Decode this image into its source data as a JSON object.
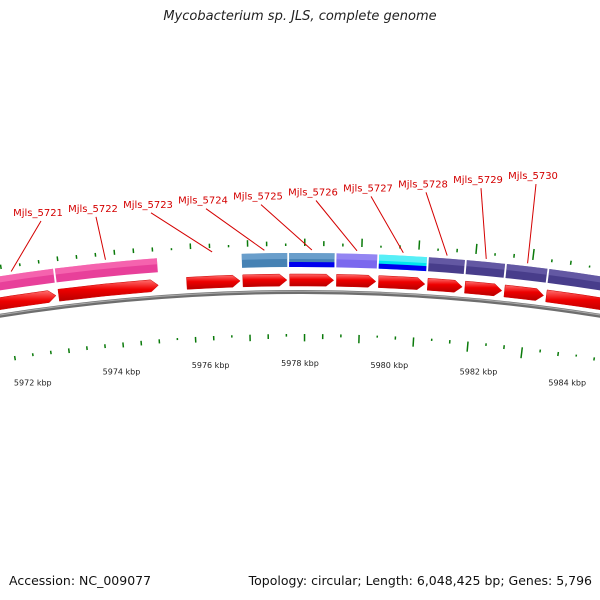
{
  "title": "Mycobacterium sp. JLS, complete genome",
  "footer": {
    "accession": "Accession: NC_009077",
    "summary": "Topology: circular; Length: 6,048,425 bp; Genes: 5,796"
  },
  "colors": {
    "backbone": "#808080",
    "cds_forward": "#ee0000",
    "label": "#d40000",
    "tick": "#006400"
  },
  "genes": [
    {
      "label": "Mjls_5721",
      "start": 5971.0,
      "end": 5972.8,
      "cog_color": "#e8409a",
      "cog_shade": "#ff80c0",
      "cog_bottom": null
    },
    {
      "label": "Mjls_5722",
      "start": 5972.8,
      "end": 5975.0,
      "cog_color": "#e8409a",
      "cog_shade": "#ff80c0",
      "cog_bottom": null
    },
    {
      "label": "Mjls_5723",
      "start": 5975.55,
      "end": 5976.75,
      "cog_color": null,
      "cog_shade": null,
      "cog_bottom": null
    },
    {
      "label": "Mjls_5724",
      "start": 5976.75,
      "end": 5977.75,
      "cog_color": "#4682b4",
      "cog_shade": "#87b7df",
      "cog_bottom": null
    },
    {
      "label": "Mjls_5725",
      "start": 5977.75,
      "end": 5978.75,
      "cog_color": "#4682b4",
      "cog_shade": "#87b7df",
      "cog_bottom": "#0000ee"
    },
    {
      "label": "Mjls_5726",
      "start": 5978.75,
      "end": 5979.65,
      "cog_color": "#7b68ee",
      "cog_shade": "#a89cf5",
      "cog_bottom": null
    },
    {
      "label": "Mjls_5727",
      "start": 5979.65,
      "end": 5980.7,
      "cog_color": "#00e5ee",
      "cog_shade": "#9ff8ff",
      "cog_bottom": "#0000ee"
    },
    {
      "label": "Mjls_5728",
      "start": 5980.7,
      "end": 5981.5,
      "cog_color": "#483d8b",
      "cog_shade": "#7a70b8",
      "cog_bottom": null
    },
    {
      "label": "Mjls_5729",
      "start": 5981.5,
      "end": 5982.35,
      "cog_color": "#483d8b",
      "cog_shade": "#7a70b8",
      "cog_bottom": null
    },
    {
      "label": "Mjls_5730",
      "start": 5982.35,
      "end": 5983.25,
      "cog_color": "#483d8b",
      "cog_shade": "#7a70b8",
      "cog_bottom": null
    },
    {
      "label": "",
      "start": 5983.25,
      "end": 5985.0,
      "cog_color": "#483d8b",
      "cog_shade": "#7a70b8",
      "cog_bottom": null
    }
  ],
  "scale_labels": [
    {
      "kbp": 5972,
      "text": "5972 kbp"
    },
    {
      "kbp": 5974,
      "text": "5974 kbp"
    },
    {
      "kbp": 5976,
      "text": "5976 kbp"
    },
    {
      "kbp": 5978,
      "text": "5978 kbp"
    },
    {
      "kbp": 5980,
      "text": "5980 kbp"
    },
    {
      "kbp": 5982,
      "text": "5982 kbp"
    },
    {
      "kbp": 5984,
      "text": "5984 kbp"
    }
  ]
}
